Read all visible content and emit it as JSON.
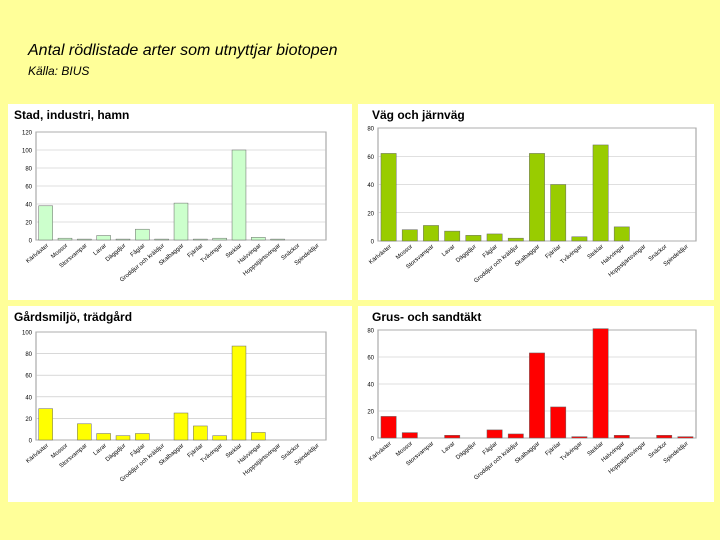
{
  "title": "Antal rödlistade arter som utnyttjar biotopen",
  "source": "Källa: BIUS",
  "categories": [
    "Kärlväxter",
    "Mossor",
    "Storsvampar",
    "Lavar",
    "Däggdjur",
    "Fåglar",
    "Groddjur och kräldjur",
    "Skalbaggar",
    "Fjärilar",
    "Tvåvingar",
    "Steklar",
    "Halvvingar",
    "Hoppstjärtsvingar",
    "Snäckor",
    "Spindeldjur"
  ],
  "chart_data": [
    {
      "type": "bar",
      "title": "Stad, industri, hamn",
      "ylim": [
        0,
        120
      ],
      "yticks": [
        0,
        20,
        40,
        60,
        80,
        100,
        120
      ],
      "color": "#ccffcc",
      "categories": [
        "Kärlväxter",
        "Mossor",
        "Storsvampar",
        "Lavar",
        "Däggdjur",
        "Fåglar",
        "Groddjur och kräldjur",
        "Skalbaggar",
        "Fjärilar",
        "Tvåvingar",
        "Steklar",
        "Halvvingar",
        "Hoppstjärtsvingar",
        "Snäckor",
        "Spindeldjur"
      ],
      "values": [
        38,
        2,
        1,
        5,
        1,
        12,
        1,
        41,
        1,
        2,
        100,
        3,
        1,
        0,
        0
      ]
    },
    {
      "type": "bar",
      "title": "Väg och järnväg",
      "ylim": [
        0,
        80
      ],
      "yticks": [
        0,
        20,
        40,
        60,
        80
      ],
      "color": "#99cc00",
      "categories": [
        "Kärlväxter",
        "Mossor",
        "Storsvampar",
        "Lavar",
        "Däggdjur",
        "Fåglar",
        "Groddjur och kräldjur",
        "Skalbaggar",
        "Fjärilar",
        "Tvåvingar",
        "Steklar",
        "Halvvingar",
        "Hoppstjärtsvingar",
        "Snäckor",
        "Spindeldjur"
      ],
      "values": [
        62,
        8,
        11,
        7,
        4,
        5,
        2,
        62,
        40,
        3,
        68,
        10,
        0,
        0,
        0
      ]
    },
    {
      "type": "bar",
      "title": "Gårdsmiljö, trädgård",
      "ylim": [
        0,
        100
      ],
      "yticks": [
        0,
        20,
        40,
        60,
        80,
        100
      ],
      "color": "#ffff00",
      "categories": [
        "Kärlväxter",
        "Mossor",
        "Storsvampar",
        "Lavar",
        "Däggdjur",
        "Fåglar",
        "Groddjur och kräldjur",
        "Skalbaggar",
        "Fjärilar",
        "Tvåvingar",
        "Steklar",
        "Halvvingar",
        "Hoppstjärtsvingar",
        "Snäckor",
        "Spindeldjur"
      ],
      "values": [
        29,
        0,
        15,
        6,
        4,
        6,
        0,
        25,
        13,
        4,
        87,
        7,
        0,
        0,
        0
      ]
    },
    {
      "type": "bar",
      "title": "Grus- och sandtäkt",
      "ylim": [
        0,
        80
      ],
      "yticks": [
        0,
        20,
        40,
        60,
        80
      ],
      "color": "#ff0000",
      "categories": [
        "Kärlväxter",
        "Mossor",
        "Storsvampar",
        "Lavar",
        "Däggdjur",
        "Fåglar",
        "Groddjur och kräldjur",
        "Skalbaggar",
        "Fjärilar",
        "Tvåvingar",
        "Steklar",
        "Halvvingar",
        "Hoppstjärtsvingar",
        "Snäckor",
        "Spindeldjur"
      ],
      "values": [
        16,
        4,
        0,
        2,
        0,
        6,
        3,
        63,
        23,
        1,
        81,
        2,
        0,
        2,
        1
      ]
    }
  ]
}
